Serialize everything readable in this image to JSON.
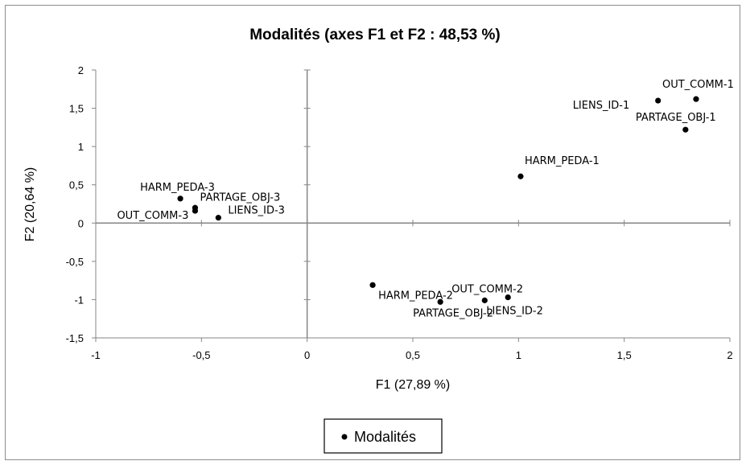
{
  "chart_data": {
    "type": "scatter",
    "title": "Modalités (axes F1 et F2 : 48,53 %)",
    "xlabel": "F1 (27,89 %)",
    "ylabel": "F2 (20,64 %)",
    "xlim": [
      -1,
      2
    ],
    "ylim": [
      -1.5,
      2
    ],
    "x_ticks": [
      -1,
      -0.5,
      0,
      0.5,
      1,
      1.5,
      2
    ],
    "x_tick_labels": [
      "-1",
      "-0,5",
      "0",
      "0,5",
      "1",
      "1,5",
      "2"
    ],
    "y_ticks": [
      -1.5,
      -1,
      -0.5,
      0,
      0.5,
      1,
      1.5,
      2
    ],
    "y_tick_labels": [
      "-1,5",
      "-1",
      "-0,5",
      "0",
      "0,5",
      "1",
      "1,5",
      "2"
    ],
    "grid": false,
    "legend": {
      "entries": [
        "Modalités"
      ],
      "placement": "bottom"
    },
    "marker_color": "#000000",
    "series": [
      {
        "name": "Modalités",
        "points": [
          {
            "label": "OUT_COMM-1",
            "x": 1.84,
            "y": 1.62
          },
          {
            "label": "LIENS_ID-1",
            "x": 1.66,
            "y": 1.6
          },
          {
            "label": "PARTAGE_OBJ-1",
            "x": 1.79,
            "y": 1.22
          },
          {
            "label": "HARM_PEDA-1",
            "x": 1.01,
            "y": 0.61
          },
          {
            "label": "HARM_PEDA-3",
            "x": -0.6,
            "y": 0.32
          },
          {
            "label": "PARTAGE_OBJ-3",
            "x": -0.53,
            "y": 0.2
          },
          {
            "label": "OUT_COMM-3",
            "x": -0.53,
            "y": 0.16
          },
          {
            "label": "LIENS_ID-3",
            "x": -0.42,
            "y": 0.07
          },
          {
            "label": "HARM_PEDA-2",
            "x": 0.31,
            "y": -0.81
          },
          {
            "label": "OUT_COMM-2",
            "x": 0.95,
            "y": -0.97
          },
          {
            "label": "PARTAGE_OBJ-2",
            "x": 0.63,
            "y": -1.03
          },
          {
            "label": "LIENS_ID-2",
            "x": 0.84,
            "y": -1.01
          }
        ]
      }
    ]
  }
}
